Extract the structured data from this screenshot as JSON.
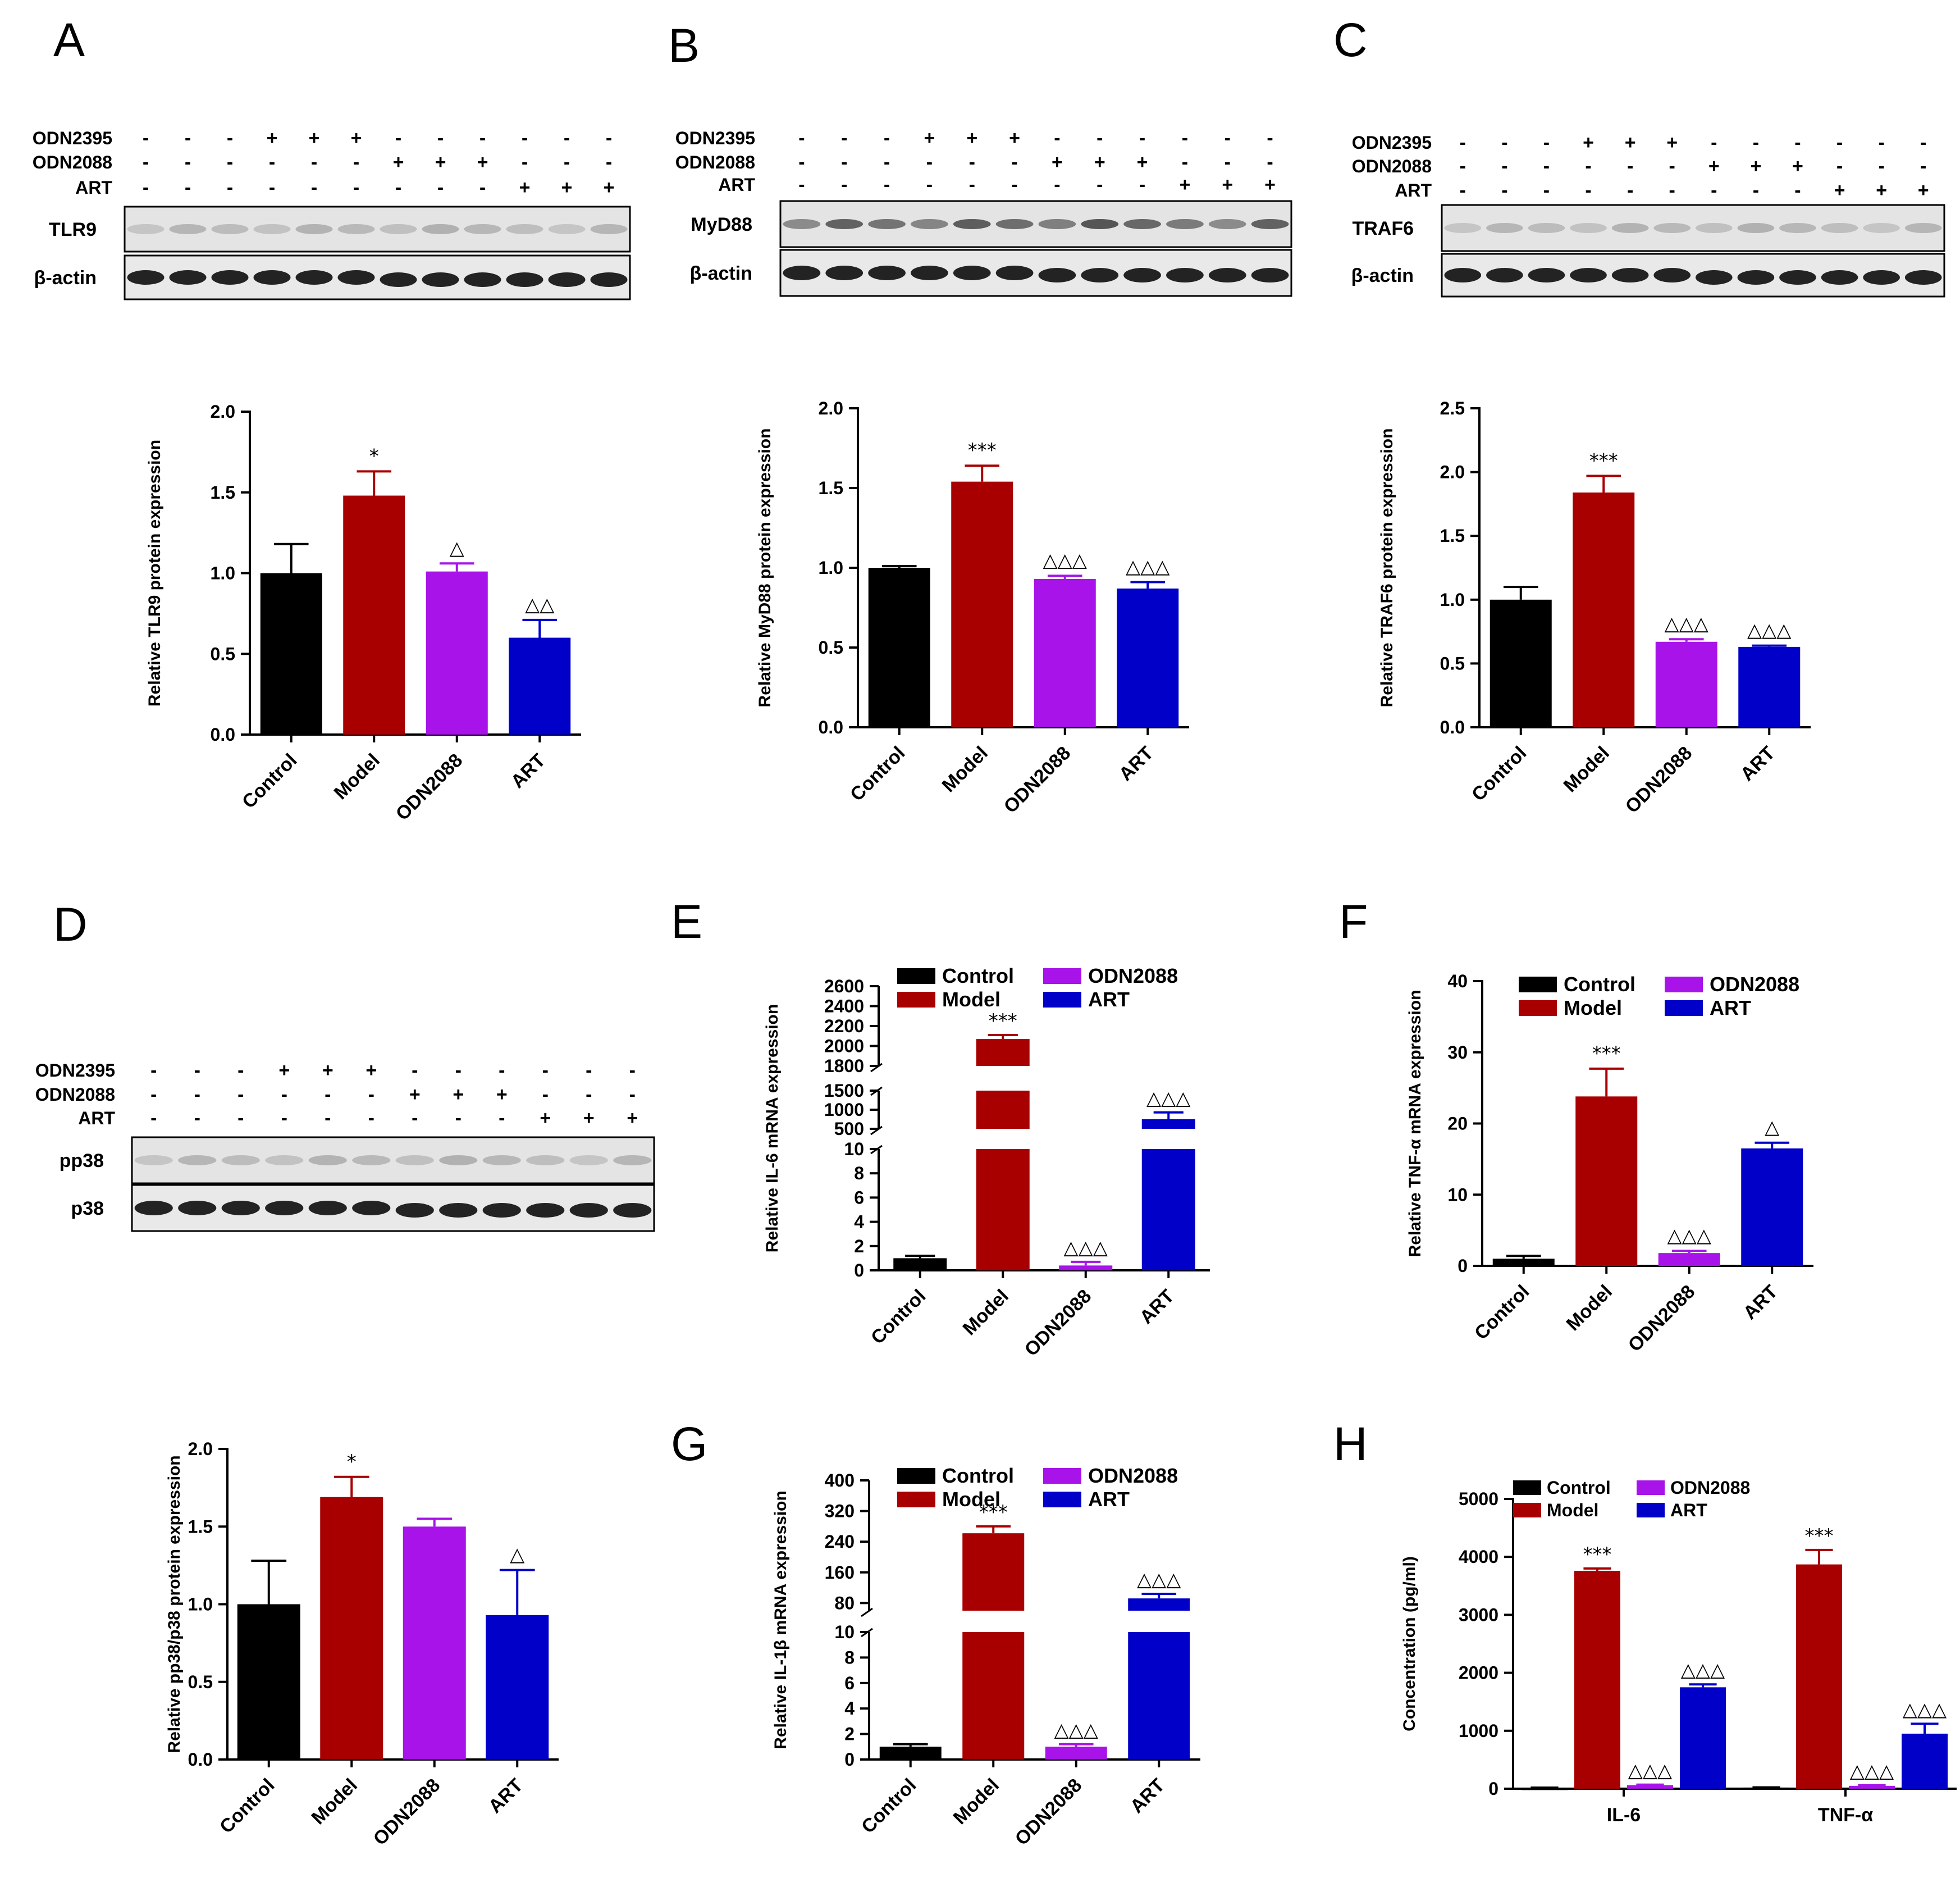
{
  "colors": {
    "Control": "#000000",
    "Model": "#a80000",
    "ODN2088": "#a713e8",
    "ART": "#0000c8"
  },
  "blots": {
    "treat_labels": [
      "ODN2395",
      "ODN2088",
      "ART"
    ],
    "lane_signs": [
      [
        "-",
        "-",
        "-",
        "+",
        "+",
        "+",
        "-",
        "-",
        "-",
        "-",
        "-",
        "-"
      ],
      [
        "-",
        "-",
        "-",
        "-",
        "-",
        "-",
        "+",
        "+",
        "+",
        "-",
        "-",
        "-"
      ],
      [
        "-",
        "-",
        "-",
        "-",
        "-",
        "-",
        "-",
        "-",
        "-",
        "+",
        "+",
        "+"
      ]
    ],
    "panels": [
      {
        "label": "A",
        "band1": "TLR9",
        "band2": "β-actin"
      },
      {
        "label": "B",
        "band1": "MyD88",
        "band2": "β-actin"
      },
      {
        "label": "C",
        "band1": "TRAF6",
        "band2": "β-actin"
      },
      {
        "label": "D",
        "band1": "pp38",
        "band2": "p38"
      }
    ]
  },
  "chart_data": [
    {
      "id": "A",
      "type": "bar",
      "categories": [
        "Control",
        "Model",
        "ODN2088",
        "ART"
      ],
      "values": [
        1.0,
        1.48,
        1.01,
        0.6
      ],
      "errors": [
        0.18,
        0.15,
        0.05,
        0.11
      ],
      "annotations": [
        "",
        "*",
        "△",
        "△△"
      ],
      "ylabel": "Relative TLR9 protein expression",
      "ylim": [
        0,
        2.0
      ],
      "yticks": [
        "0.0",
        "0.5",
        "1.0",
        "1.5",
        "2.0"
      ]
    },
    {
      "id": "B",
      "type": "bar",
      "categories": [
        "Control",
        "Model",
        "ODN2088",
        "ART"
      ],
      "values": [
        1.0,
        1.54,
        0.93,
        0.87
      ],
      "errors": [
        0.01,
        0.1,
        0.02,
        0.04
      ],
      "annotations": [
        "",
        "***",
        "△△△",
        "△△△"
      ],
      "ylabel": "Relative MyD88 protein expression",
      "ylim": [
        0,
        2.0
      ],
      "yticks": [
        "0.0",
        "0.5",
        "1.0",
        "1.5",
        "2.0"
      ]
    },
    {
      "id": "C",
      "type": "bar",
      "categories": [
        "Control",
        "Model",
        "ODN2088",
        "ART"
      ],
      "values": [
        1.0,
        1.84,
        0.67,
        0.63
      ],
      "errors": [
        0.1,
        0.13,
        0.02,
        0.01
      ],
      "annotations": [
        "",
        "***",
        "△△△",
        "△△△"
      ],
      "ylabel": "Relative TRAF6 protein expression",
      "ylim": [
        0,
        2.5
      ],
      "yticks": [
        "0.0",
        "0.5",
        "1.0",
        "1.5",
        "2.0",
        "2.5"
      ]
    },
    {
      "id": "D",
      "type": "bar",
      "categories": [
        "Control",
        "Model",
        "ODN2088",
        "ART"
      ],
      "values": [
        1.0,
        1.69,
        1.5,
        0.93
      ],
      "errors": [
        0.28,
        0.13,
        0.05,
        0.29
      ],
      "annotations": [
        "",
        "*",
        "",
        "△"
      ],
      "ylabel": "Relative pp38/p38 protein expression",
      "ylim": [
        0,
        2.0
      ],
      "yticks": [
        "0.0",
        "0.5",
        "1.0",
        "1.5",
        "2.0"
      ]
    },
    {
      "id": "E",
      "type": "bar",
      "broken_axis": true,
      "categories": [
        "Control",
        "Model",
        "ODN2088",
        "ART"
      ],
      "values": [
        1.0,
        2070,
        0.4,
        750
      ],
      "errors": [
        0.2,
        40,
        0.3,
        180
      ],
      "annotations": [
        "",
        "***",
        "△△△",
        "△△△"
      ],
      "ylabel": "Relative IL-6 mRNA expression",
      "segments": [
        {
          "range": [
            0,
            10
          ],
          "ticks": [
            "0",
            "2",
            "4",
            "6",
            "8",
            "10"
          ]
        },
        {
          "range": [
            500,
            1500
          ],
          "ticks": [
            "500",
            "1000",
            "1500"
          ]
        },
        {
          "range": [
            1800,
            2600
          ],
          "ticks": [
            "1800",
            "2000",
            "2200",
            "2400",
            "2600"
          ]
        }
      ],
      "legend": [
        "Control",
        "Model",
        "ODN2088",
        "ART"
      ]
    },
    {
      "id": "F",
      "type": "bar",
      "categories": [
        "Control",
        "Model",
        "ODN2088",
        "ART"
      ],
      "values": [
        1.0,
        23.8,
        1.8,
        16.5
      ],
      "errors": [
        0.4,
        3.9,
        0.3,
        0.8
      ],
      "annotations": [
        "",
        "***",
        "△△△",
        "△"
      ],
      "ylabel": "Relative TNF-α mRNA expression",
      "ylim": [
        0,
        40
      ],
      "yticks": [
        "0",
        "10",
        "20",
        "30",
        "40"
      ],
      "legend": [
        "Control",
        "Model",
        "ODN2088",
        "ART"
      ]
    },
    {
      "id": "G",
      "type": "bar",
      "broken_axis": true,
      "categories": [
        "Control",
        "Model",
        "ODN2088",
        "ART"
      ],
      "values": [
        1.0,
        262,
        1.0,
        92
      ],
      "errors": [
        0.2,
        18,
        0.2,
        12
      ],
      "annotations": [
        "",
        "***",
        "△△△",
        "△△△"
      ],
      "ylabel": "Relative IL-1β mRNA expression",
      "segments": [
        {
          "range": [
            0,
            10
          ],
          "ticks": [
            "0",
            "2",
            "4",
            "6",
            "8",
            "10"
          ]
        },
        {
          "range": [
            60,
            400
          ],
          "ticks": [
            "80",
            "160",
            "240",
            "320",
            "400"
          ]
        }
      ],
      "legend": [
        "Control",
        "Model",
        "ODN2088",
        "ART"
      ]
    },
    {
      "id": "H",
      "type": "bar",
      "categories": [
        "IL-6",
        "TNF-α"
      ],
      "series": [
        {
          "name": "Control",
          "values": [
            15,
            20
          ],
          "errors": [
            3,
            3
          ],
          "annotations": [
            "",
            ""
          ]
        },
        {
          "name": "Model",
          "values": [
            3760,
            3870
          ],
          "errors": [
            40,
            250
          ],
          "annotations": [
            "***",
            "***"
          ]
        },
        {
          "name": "ODN2088",
          "values": [
            60,
            50
          ],
          "errors": [
            10,
            10
          ],
          "annotations": [
            "△△△",
            "△△△"
          ]
        },
        {
          "name": "ART",
          "values": [
            1750,
            950
          ],
          "errors": [
            50,
            170
          ],
          "annotations": [
            "△△△",
            "△△△"
          ]
        }
      ],
      "ylabel": "Concentration (pg/ml)",
      "ylim": [
        0,
        5000
      ],
      "yticks": [
        "0",
        "1000",
        "2000",
        "3000",
        "4000",
        "5000"
      ],
      "legend": [
        "Control",
        "Model",
        "ODN2088",
        "ART"
      ]
    }
  ]
}
